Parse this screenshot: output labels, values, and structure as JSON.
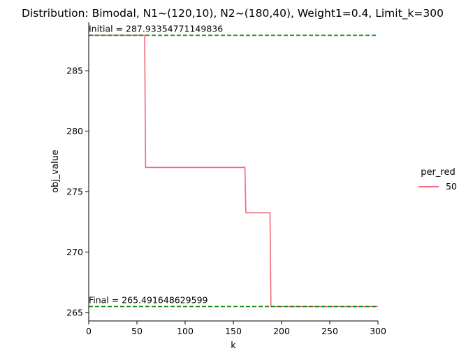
{
  "chart_data": {
    "type": "line",
    "title": "Distribution: Bimodal, N1~(120,10), N2~(180,40), Weight1=0.4, Limit_k=300",
    "xlabel": "k",
    "ylabel": "obj_value",
    "xlim": [
      0,
      300
    ],
    "ylim": [
      264.3,
      289.0
    ],
    "x_ticks": [
      0,
      50,
      100,
      150,
      200,
      250,
      300
    ],
    "y_ticks": [
      265,
      270,
      275,
      280,
      285
    ],
    "grid": false,
    "legend": {
      "title": "per_red",
      "placement": "right",
      "entries": [
        "50"
      ]
    },
    "series": [
      {
        "name": "50",
        "color": "#f0697a",
        "points": [
          [
            0,
            287.93354771149836
          ],
          [
            58,
            287.93354771149836
          ],
          [
            59,
            277.0
          ],
          [
            162,
            277.0
          ],
          [
            163,
            273.25
          ],
          [
            188,
            273.25
          ],
          [
            189,
            265.491648629599
          ],
          [
            300,
            265.491648629599
          ]
        ]
      }
    ],
    "reference_lines": [
      {
        "name": "initial",
        "y": 287.93354771149836,
        "color": "#008000",
        "style": "dashed",
        "label": "Initial = 287.93354771149836"
      },
      {
        "name": "final",
        "y": 265.491648629599,
        "color": "#008000",
        "style": "dashed",
        "label": "Final = 265.491648629599"
      }
    ]
  }
}
